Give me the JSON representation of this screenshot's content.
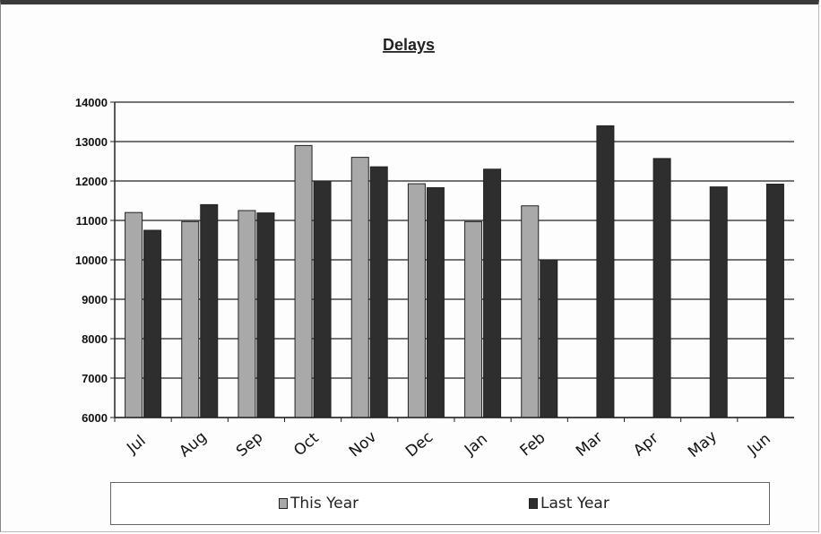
{
  "chart_data": {
    "type": "bar",
    "title": "Delays",
    "categories": [
      "Jul",
      "Aug",
      "Sep",
      "Oct",
      "Nov",
      "Dec",
      "Jan",
      "Feb",
      "Mar",
      "Apr",
      "May",
      "Jun"
    ],
    "series": [
      {
        "name": "This Year",
        "values": [
          11200,
          10970,
          11250,
          12900,
          12600,
          11930,
          10970,
          11370,
          null,
          null,
          null,
          null
        ],
        "color": "#a9a9a9"
      },
      {
        "name": "Last Year",
        "values": [
          10750,
          11400,
          11190,
          12000,
          12360,
          11830,
          12300,
          10000,
          13400,
          12570,
          11850,
          11920
        ],
        "color": "#2e2e2e"
      }
    ],
    "ylim": [
      6000,
      14000
    ],
    "yticks": [
      "6000",
      "7000",
      "8000",
      "9000",
      "10000",
      "11000",
      "12000",
      "13000",
      "14000"
    ],
    "grid": true,
    "legend_position": "bottom"
  }
}
